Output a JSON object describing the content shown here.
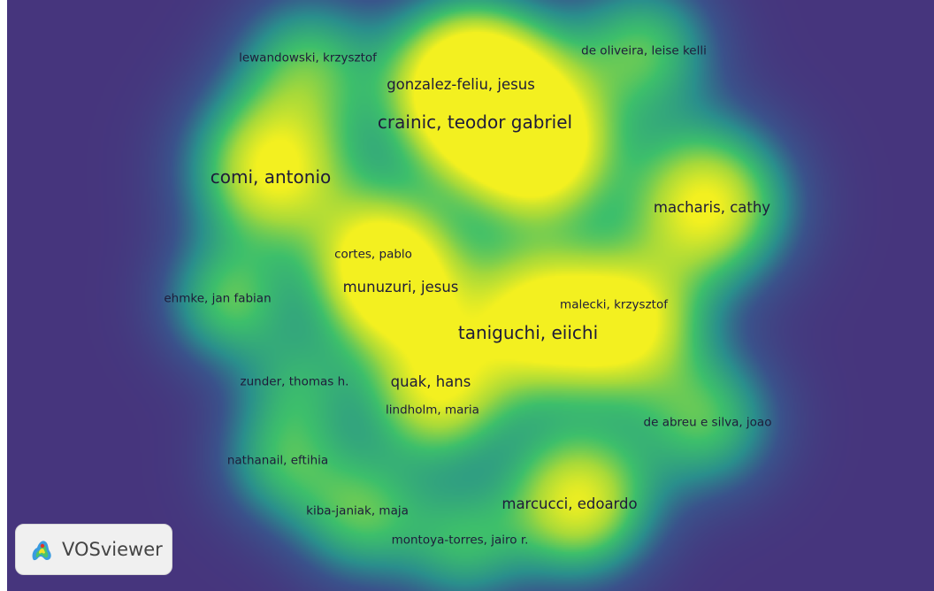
{
  "app": {
    "logo_text": "VOSviewer"
  },
  "colors": {
    "background": "#46357d",
    "low": "#2a8f8c",
    "mid": "#3dbf6b",
    "high": "#f3f020"
  },
  "nodes": [
    {
      "label": "lewandowski, krzysztof",
      "weight": 1.0,
      "font": "small"
    },
    {
      "label": "gonzalez-feliu, jesus",
      "weight": 3.0,
      "font": "medium"
    },
    {
      "label": "de oliveira, leise kelli",
      "weight": 1.3,
      "font": "small"
    },
    {
      "label": "crainic, teodor gabriel",
      "weight": 4.0,
      "font": "large"
    },
    {
      "label": "comi, antonio",
      "weight": 4.0,
      "font": "large"
    },
    {
      "label": "macharis, cathy",
      "weight": 2.8,
      "font": "medium"
    },
    {
      "label": "cortes, pablo",
      "weight": 1.6,
      "font": "small"
    },
    {
      "label": "munuzuri, jesus",
      "weight": 2.4,
      "font": "medium"
    },
    {
      "label": "ehmke, jan fabian",
      "weight": 1.6,
      "font": "small"
    },
    {
      "label": "malecki, krzysztof",
      "weight": 2.4,
      "font": "small"
    },
    {
      "label": "taniguchi, eiichi",
      "weight": 4.2,
      "font": "large"
    },
    {
      "label": "zunder, thomas h.",
      "weight": 0.9,
      "font": "small"
    },
    {
      "label": "quak, hans",
      "weight": 2.6,
      "font": "medium"
    },
    {
      "label": "lindholm, maria",
      "weight": 1.2,
      "font": "small"
    },
    {
      "label": "de abreu e silva, joao",
      "weight": 1.2,
      "font": "small"
    },
    {
      "label": "nathanail, eftihia",
      "weight": 1.0,
      "font": "small"
    },
    {
      "label": "marcucci, edoardo",
      "weight": 3.0,
      "font": "medium"
    },
    {
      "label": "kiba-janiak, maja",
      "weight": 1.3,
      "font": "small"
    },
    {
      "label": "montoya-torres, jairo r.",
      "weight": 1.1,
      "font": "small"
    }
  ]
}
